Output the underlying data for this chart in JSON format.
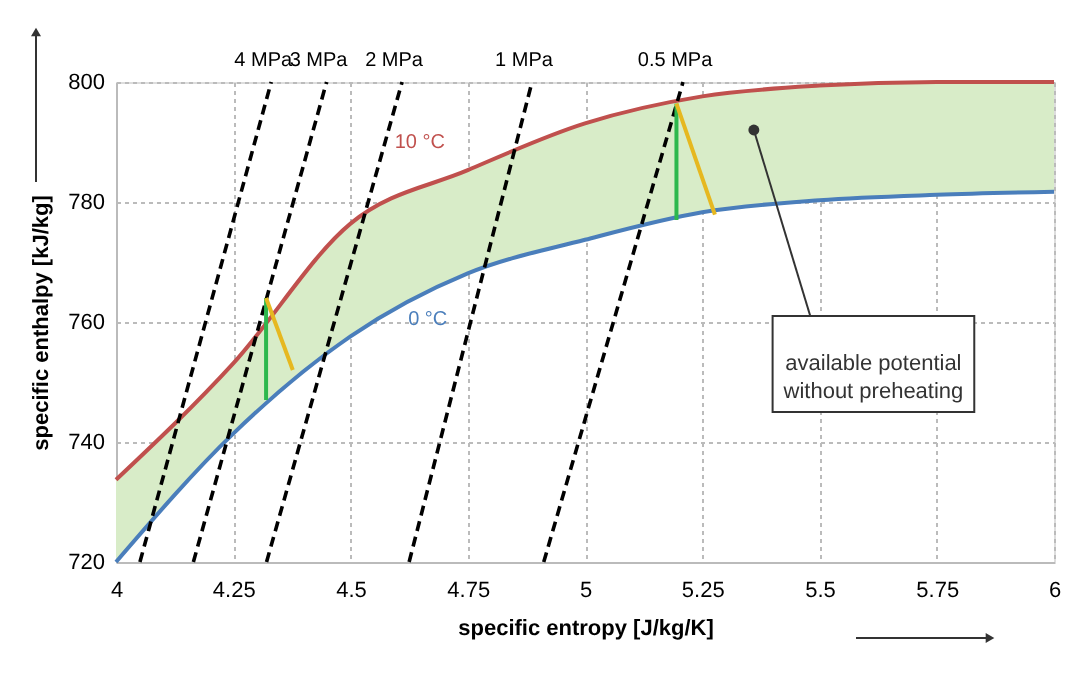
{
  "chart_data": {
    "type": "line",
    "xlabel": "specific entropy [J/kg/K]",
    "ylabel": "specific enthalpy [kJ/kg]",
    "xlim": [
      4,
      6
    ],
    "xticks": [
      4,
      4.25,
      4.5,
      4.75,
      5,
      5.25,
      5.5,
      5.75,
      6
    ],
    "ylim": [
      720,
      800
    ],
    "yticks": [
      720,
      740,
      760,
      780,
      800
    ],
    "grid": true,
    "line_style": "solid",
    "series": [
      {
        "name": "10 °C",
        "color": "#c0504d",
        "x": [
          4,
          4.25,
          4.5,
          4.75,
          5,
          5.25,
          5.5,
          5.75,
          6
        ],
        "values": [
          733.7,
          753.1,
          776.4,
          785.3,
          793.1,
          797.6,
          799.4,
          800,
          800
        ],
        "lower": [
          720,
          741.4,
          757.6,
          768.1,
          773.7,
          778.3,
          780.3,
          781.2,
          781.7
        ],
        "upper": [
          733.7,
          753.1,
          776.4,
          785.3,
          793.1,
          797.6,
          799.4,
          800,
          800
        ]
      },
      {
        "name": "0 °C",
        "color": "#4a7ebb",
        "x": [
          4,
          4.25,
          4.5,
          4.75,
          5,
          5.25,
          5.5,
          5.75,
          6
        ],
        "values": [
          720,
          741.4,
          757.6,
          768.1,
          773.7,
          778.3,
          780.3,
          781.2,
          781.7
        ]
      },
      {
        "name": "4 MPa",
        "color": "#000000",
        "line_style": "dashed",
        "x": [
          4.051,
          4.331
        ],
        "values": [
          720,
          800
        ]
      },
      {
        "name": "3 MPa",
        "color": "#000000",
        "line_style": "dashed",
        "x": [
          4.165,
          4.449
        ],
        "values": [
          720,
          800
        ]
      },
      {
        "name": "2 MPa",
        "color": "#000000",
        "line_style": "dashed",
        "x": [
          4.321,
          4.61
        ],
        "values": [
          720,
          800
        ]
      },
      {
        "name": "1 MPa",
        "color": "#000000",
        "line_style": "dashed",
        "x": [
          4.625,
          4.887
        ],
        "values": [
          720,
          800
        ]
      },
      {
        "name": "0.5 MPa",
        "color": "#000000",
        "line_style": "dashed",
        "x": [
          4.912,
          5.209
        ],
        "values": [
          720,
          800
        ]
      },
      {
        "color": "#2db84d",
        "x": [
          4.32,
          4.32
        ],
        "values": [
          764,
          747
        ]
      },
      {
        "color": "#e6b820",
        "x": [
          4.32,
          4.377
        ],
        "values": [
          764,
          752
        ]
      },
      {
        "color": "#2db84d",
        "x": [
          5.195,
          5.195
        ],
        "values": [
          796.4,
          777
        ]
      },
      {
        "color": "#e6b820",
        "x": [
          5.195,
          5.277
        ],
        "values": [
          796.4,
          777.9
        ]
      }
    ],
    "annotations": [
      {
        "text": "available potential\nwithout preheating",
        "x": 5.36,
        "y": 792
      }
    ]
  }
}
